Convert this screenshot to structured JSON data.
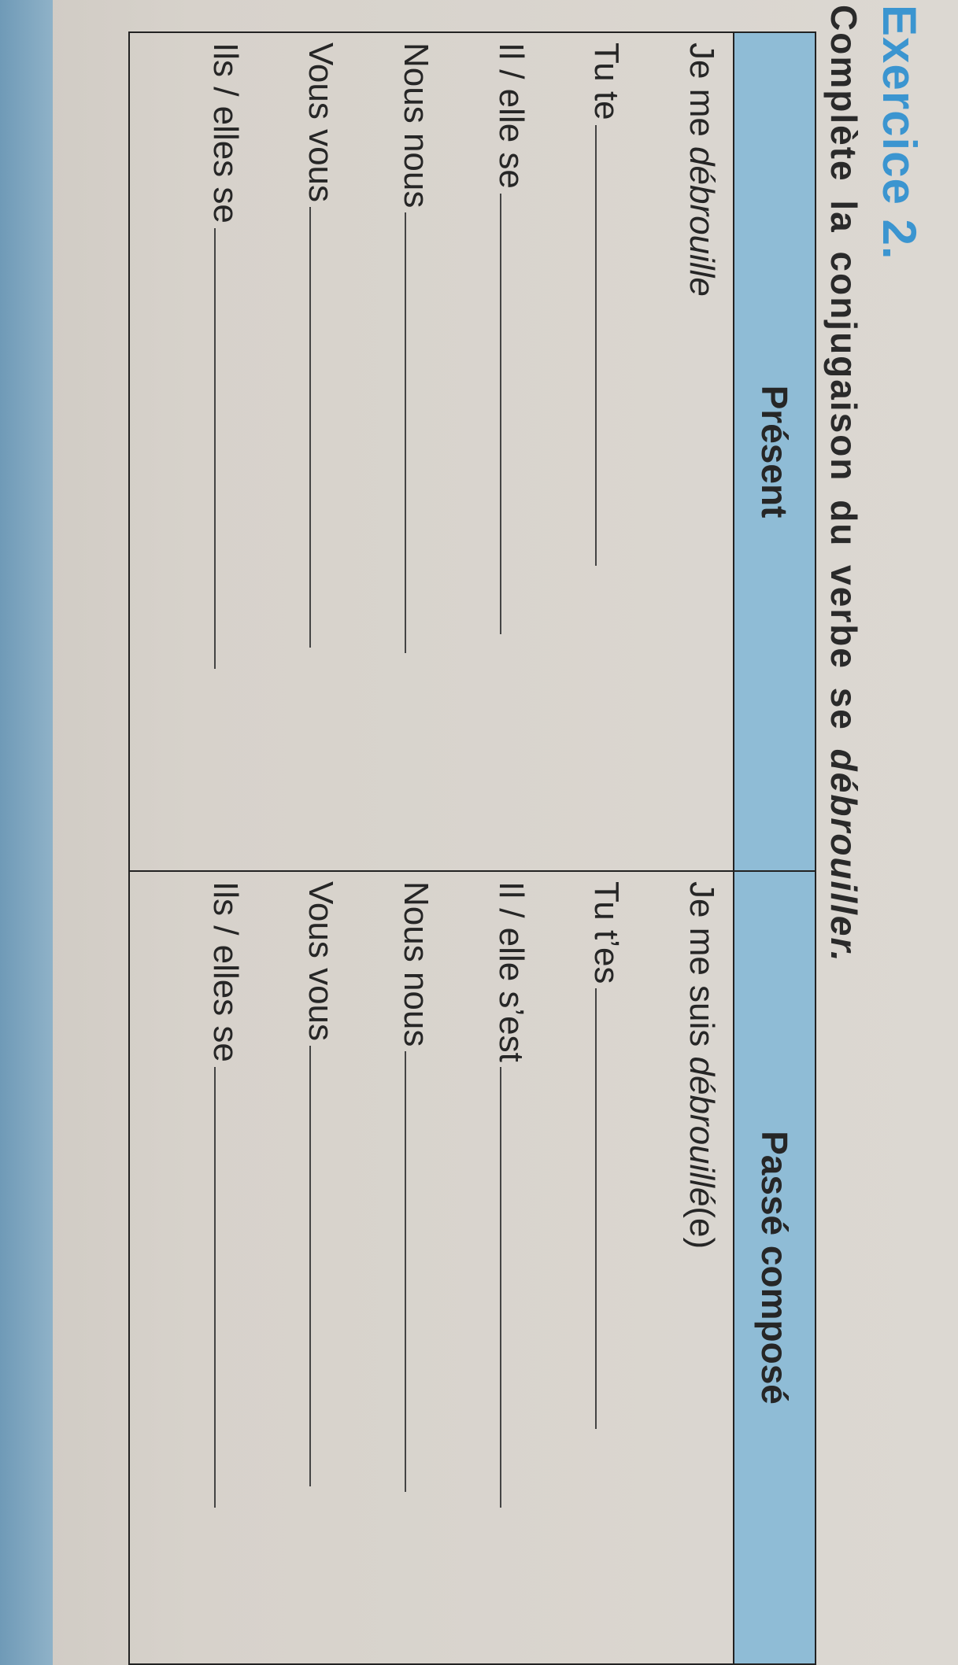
{
  "exercise": {
    "title": "Exercice 2.",
    "instruction": "Complète la conjugaison du verbe se",
    "verb": "débrouiller."
  },
  "table": {
    "headers": [
      "Présent",
      "Passé composé"
    ],
    "present": [
      {
        "prefix": "Je me ",
        "example": "débrouille",
        "blank": false
      },
      {
        "prefix": "Tu te",
        "blank": true
      },
      {
        "prefix": "Il / elle se",
        "blank": true
      },
      {
        "prefix": "Nous nous",
        "blank": true
      },
      {
        "prefix": "Vous vous",
        "blank": true
      },
      {
        "prefix": "Ils / elles se",
        "blank": true
      }
    ],
    "passe_compose": [
      {
        "prefix": "Je me suis ",
        "example": "débrouillé",
        "suffix": "(e)",
        "blank": false
      },
      {
        "prefix": "Tu t’es",
        "blank": true
      },
      {
        "prefix": "Il / elle s’est",
        "blank": true
      },
      {
        "prefix": "Nous nous",
        "blank": true
      },
      {
        "prefix": "Vous vous",
        "blank": true
      },
      {
        "prefix": "Ils / elles se",
        "blank": true
      }
    ]
  },
  "colors": {
    "title": "#3b95d0",
    "header_band": "#8fbcd6",
    "paper": "#d6d1ca"
  }
}
